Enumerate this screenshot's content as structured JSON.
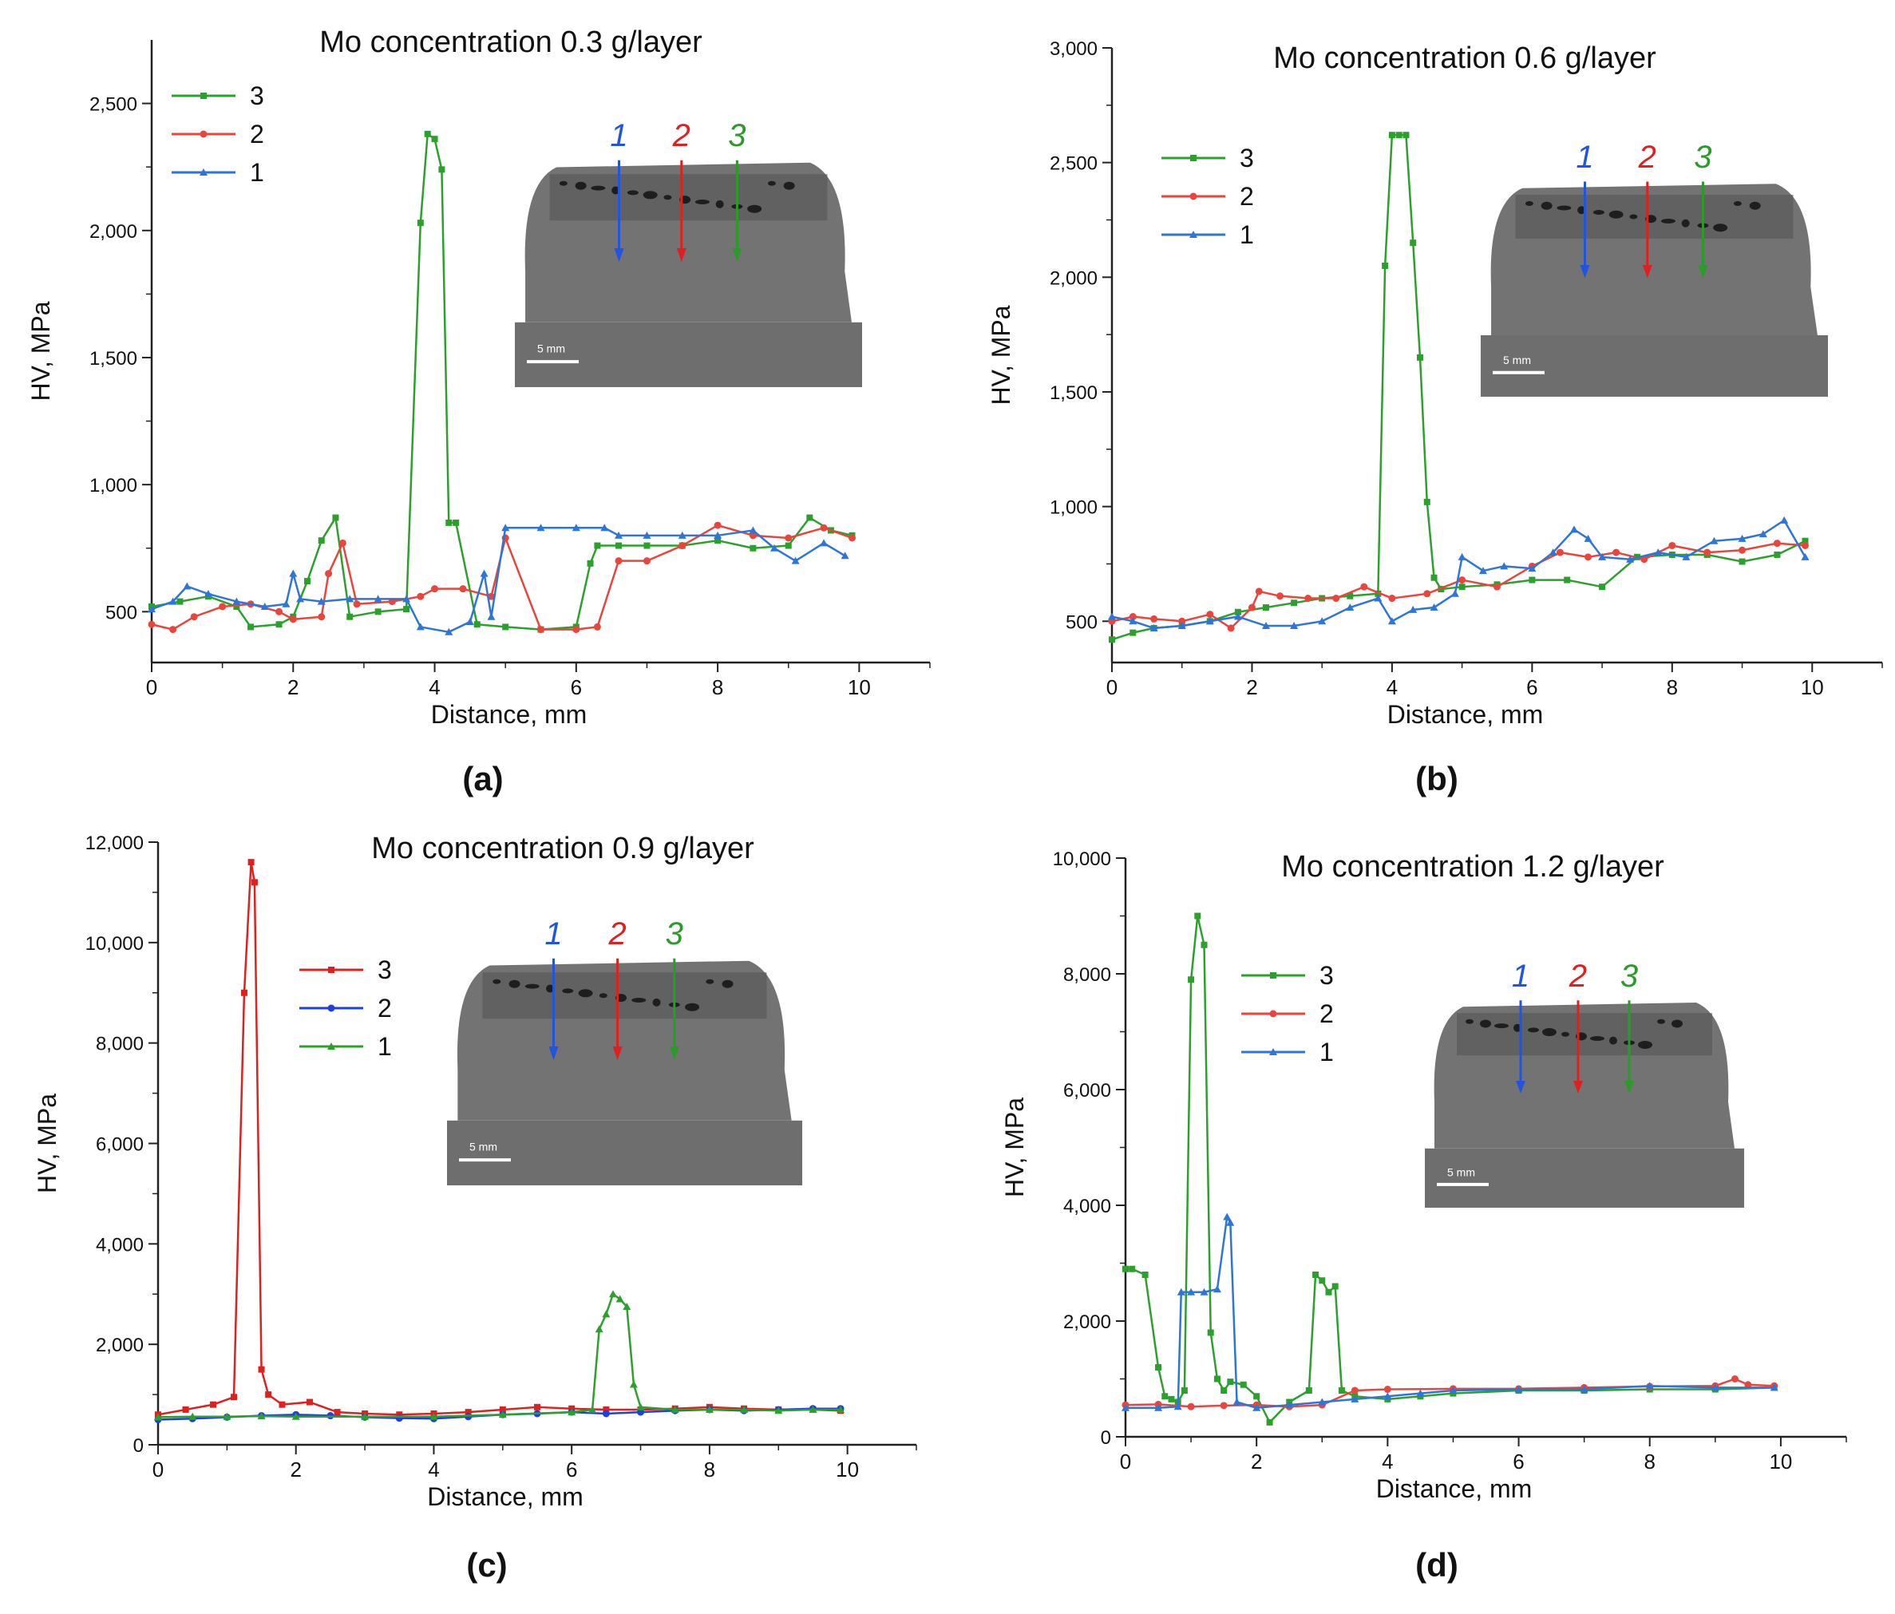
{
  "panels": [
    {
      "caption": "(a)",
      "chart_data": {
        "type": "line",
        "title": "Mo concentration 0.3 g/layer",
        "xlabel": "Distance, mm",
        "ylabel": "HV, MPa",
        "xlim": [
          0,
          11
        ],
        "ylim": [
          300,
          2750
        ],
        "xticks": [
          0,
          2,
          4,
          6,
          8,
          10
        ],
        "xtick_labels": [
          "0",
          "2",
          "4",
          "6",
          "8",
          "10"
        ],
        "yticks": [
          500,
          1000,
          1500,
          2000,
          2500
        ],
        "ytick_labels": [
          "500",
          "1,000",
          "1,500",
          "2,000",
          "2,500"
        ],
        "legend": "top-left",
        "inset": {
          "labels": [
            "1",
            "2",
            "3"
          ],
          "colors": [
            "#2255dd",
            "#e02020",
            "#2a9a2a"
          ],
          "scale_label": "5 mm"
        },
        "series": [
          {
            "name": "3",
            "color": "#2ca02c",
            "marker": "square",
            "x": [
              0,
              0.4,
              0.8,
              1.2,
              1.4,
              1.8,
              2.0,
              2.2,
              2.4,
              2.6,
              2.8,
              3.2,
              3.6,
              3.8,
              3.9,
              4.0,
              4.1,
              4.2,
              4.3,
              4.6,
              5.0,
              5.5,
              6.0,
              6.2,
              6.3,
              6.6,
              7.0,
              7.5,
              8.0,
              8.5,
              9.0,
              9.3,
              9.6,
              9.9
            ],
            "y": [
              520,
              540,
              560,
              520,
              440,
              450,
              480,
              620,
              780,
              870,
              480,
              500,
              510,
              2030,
              2380,
              2360,
              2240,
              850,
              850,
              450,
              440,
              430,
              440,
              690,
              760,
              760,
              760,
              760,
              780,
              750,
              760,
              870,
              820,
              800
            ]
          },
          {
            "name": "2",
            "color": "#e8453c",
            "marker": "circle",
            "x": [
              0,
              0.3,
              0.6,
              1.0,
              1.4,
              1.8,
              2.0,
              2.4,
              2.5,
              2.7,
              2.9,
              3.4,
              3.8,
              4.0,
              4.4,
              4.8,
              5.0,
              5.5,
              6.0,
              6.3,
              6.6,
              7.0,
              7.5,
              8.0,
              8.5,
              9.0,
              9.5,
              9.9
            ],
            "y": [
              450,
              430,
              480,
              520,
              530,
              500,
              470,
              480,
              650,
              770,
              530,
              540,
              560,
              590,
              590,
              560,
              790,
              430,
              430,
              440,
              700,
              700,
              760,
              840,
              800,
              790,
              830,
              790
            ]
          },
          {
            "name": "1",
            "color": "#2e75d9",
            "marker": "triangle",
            "x": [
              0,
              0.3,
              0.5,
              0.8,
              1.2,
              1.6,
              1.9,
              2.0,
              2.1,
              2.4,
              2.8,
              3.2,
              3.6,
              3.8,
              4.2,
              4.5,
              4.7,
              4.8,
              5.0,
              5.5,
              6.0,
              6.4,
              6.6,
              7.0,
              7.5,
              8.0,
              8.5,
              8.8,
              9.1,
              9.5,
              9.8
            ],
            "y": [
              510,
              540,
              600,
              570,
              540,
              520,
              530,
              650,
              550,
              540,
              550,
              550,
              550,
              440,
              420,
              460,
              650,
              480,
              830,
              830,
              830,
              830,
              800,
              800,
              800,
              800,
              820,
              750,
              700,
              770,
              720
            ]
          }
        ]
      }
    },
    {
      "caption": "(b)",
      "chart_data": {
        "type": "line",
        "title": "Mo concentration 0.6 g/layer",
        "xlabel": "Distance, mm",
        "ylabel": "HV, MPa",
        "xlim": [
          0,
          11
        ],
        "ylim": [
          320,
          3000
        ],
        "xticks": [
          0,
          2,
          4,
          6,
          8,
          10
        ],
        "xtick_labels": [
          "0",
          "2",
          "4",
          "6",
          "8",
          "10"
        ],
        "yticks": [
          500,
          1000,
          1500,
          2000,
          2500,
          3000
        ],
        "ytick_labels": [
          "500",
          "1,000",
          "1,500",
          "2,000",
          "2,500",
          "3,000"
        ],
        "legend": "top-left",
        "inset": {
          "labels": [
            "1",
            "2",
            "3"
          ],
          "colors": [
            "#2255dd",
            "#e02020",
            "#2a9a2a"
          ],
          "scale_label": "5 mm"
        },
        "series": [
          {
            "name": "3",
            "color": "#2ca02c",
            "marker": "square",
            "x": [
              0,
              0.3,
              0.6,
              1.0,
              1.4,
              1.8,
              2.2,
              2.6,
              3.0,
              3.4,
              3.8,
              3.9,
              4.0,
              4.1,
              4.2,
              4.3,
              4.4,
              4.5,
              4.6,
              4.7,
              5.0,
              5.5,
              6.0,
              6.5,
              7.0,
              7.5,
              8.0,
              8.5,
              9.0,
              9.5,
              9.9
            ],
            "y": [
              420,
              450,
              470,
              480,
              500,
              540,
              560,
              580,
              600,
              610,
              620,
              2050,
              2620,
              2620,
              2620,
              2150,
              1650,
              1020,
              690,
              640,
              650,
              660,
              680,
              680,
              650,
              780,
              790,
              790,
              760,
              790,
              850
            ]
          },
          {
            "name": "2",
            "color": "#e8453c",
            "marker": "circle",
            "x": [
              0,
              0.3,
              0.6,
              1.0,
              1.4,
              1.7,
              2.0,
              2.1,
              2.4,
              2.8,
              3.2,
              3.6,
              4.0,
              4.5,
              5.0,
              5.5,
              6.0,
              6.4,
              6.8,
              7.2,
              7.6,
              8.0,
              8.5,
              9.0,
              9.5,
              9.9
            ],
            "y": [
              500,
              520,
              510,
              500,
              530,
              470,
              560,
              630,
              610,
              600,
              600,
              650,
              600,
              620,
              680,
              650,
              740,
              800,
              780,
              800,
              770,
              830,
              800,
              810,
              840,
              830
            ]
          },
          {
            "name": "1",
            "color": "#2e75d9",
            "marker": "triangle",
            "x": [
              0,
              0.3,
              0.6,
              1.0,
              1.4,
              1.8,
              2.2,
              2.6,
              3.0,
              3.4,
              3.8,
              4.0,
              4.3,
              4.6,
              4.9,
              5.0,
              5.3,
              5.6,
              6.0,
              6.3,
              6.6,
              6.8,
              7.0,
              7.4,
              7.8,
              8.2,
              8.6,
              9.0,
              9.3,
              9.6,
              9.9
            ],
            "y": [
              520,
              500,
              470,
              480,
              500,
              520,
              480,
              480,
              500,
              560,
              600,
              500,
              550,
              560,
              620,
              780,
              720,
              740,
              730,
              800,
              900,
              860,
              780,
              770,
              800,
              780,
              850,
              860,
              880,
              940,
              780
            ]
          }
        ]
      }
    },
    {
      "caption": "(c)",
      "chart_data": {
        "type": "line",
        "title": "Mo concentration 0.9 g/layer",
        "xlabel": "Distance, mm",
        "ylabel": "HV, MPa",
        "xlim": [
          0,
          11
        ],
        "ylim": [
          0,
          12000
        ],
        "xticks": [
          0,
          2,
          4,
          6,
          8,
          10
        ],
        "xtick_labels": [
          "0",
          "2",
          "4",
          "6",
          "8",
          "10"
        ],
        "yticks": [
          0,
          2000,
          4000,
          6000,
          8000,
          10000,
          12000
        ],
        "ytick_labels": [
          "0",
          "2,000",
          "4,000",
          "6,000",
          "8,000",
          "10,000",
          "12,000"
        ],
        "legend": "top-center",
        "inset": {
          "labels": [
            "1",
            "2",
            "3"
          ],
          "colors": [
            "#2255dd",
            "#e02020",
            "#2a9a2a"
          ],
          "scale_label": "5 mm"
        },
        "series": [
          {
            "name": "3",
            "color": "#e01f1f",
            "marker": "square",
            "x": [
              0,
              0.4,
              0.8,
              1.1,
              1.25,
              1.35,
              1.4,
              1.5,
              1.6,
              1.8,
              2.2,
              2.6,
              3.0,
              3.5,
              4.0,
              4.5,
              5.0,
              5.5,
              6.0,
              6.5,
              7.0,
              7.5,
              8.0,
              8.5,
              9.0,
              9.5,
              9.9
            ],
            "y": [
              600,
              700,
              800,
              950,
              9000,
              11600,
              11200,
              1500,
              1000,
              800,
              850,
              650,
              620,
              600,
              620,
              650,
              700,
              750,
              720,
              700,
              700,
              720,
              750,
              720,
              700,
              700,
              680
            ]
          },
          {
            "name": "2",
            "color": "#1f3fe0",
            "marker": "circle",
            "x": [
              0,
              0.5,
              1.0,
              1.5,
              2.0,
              2.5,
              3.0,
              3.5,
              4.0,
              4.5,
              5.0,
              5.5,
              6.0,
              6.5,
              7.0,
              7.5,
              8.0,
              8.5,
              9.0,
              9.5,
              9.9
            ],
            "y": [
              500,
              520,
              550,
              580,
              600,
              580,
              550,
              530,
              520,
              560,
              600,
              620,
              650,
              620,
              650,
              680,
              700,
              680,
              700,
              720,
              720
            ]
          },
          {
            "name": "1",
            "color": "#2ca02c",
            "marker": "triangle",
            "x": [
              0,
              0.5,
              1.0,
              1.5,
              2.0,
              3.0,
              4.0,
              5.0,
              6.0,
              6.3,
              6.4,
              6.5,
              6.6,
              6.7,
              6.8,
              6.9,
              7.0,
              7.5,
              8.0,
              8.5,
              9.0,
              9.5,
              9.9
            ],
            "y": [
              550,
              560,
              560,
              570,
              560,
              560,
              560,
              600,
              650,
              700,
              2300,
              2600,
              3000,
              2900,
              2750,
              1200,
              750,
              700,
              700,
              700,
              680,
              700,
              700
            ]
          }
        ]
      }
    },
    {
      "caption": "(d)",
      "chart_data": {
        "type": "line",
        "title": "Mo concentration 1.2 g/layer",
        "xlabel": "Distance, mm",
        "ylabel": "HV, MPa",
        "xlim": [
          0,
          11
        ],
        "ylim": [
          0,
          10000
        ],
        "xticks": [
          0,
          2,
          4,
          6,
          8,
          10
        ],
        "xtick_labels": [
          "0",
          "2",
          "4",
          "6",
          "8",
          "10"
        ],
        "yticks": [
          0,
          2000,
          4000,
          6000,
          8000,
          10000
        ],
        "ytick_labels": [
          "0",
          "2,000",
          "4,000",
          "6,000",
          "8,000",
          "10,000"
        ],
        "legend": "top-left",
        "inset": {
          "labels": [
            "1",
            "2",
            "3"
          ],
          "colors": [
            "#2255dd",
            "#e02020",
            "#2a9a2a"
          ],
          "scale_label": "5 mm"
        },
        "series": [
          {
            "name": "3",
            "color": "#2ca02c",
            "marker": "square",
            "x": [
              0,
              0.1,
              0.3,
              0.5,
              0.6,
              0.7,
              0.8,
              0.9,
              1.0,
              1.1,
              1.2,
              1.3,
              1.4,
              1.5,
              1.6,
              1.8,
              2.0,
              2.2,
              2.5,
              2.8,
              2.9,
              3.0,
              3.1,
              3.2,
              3.3,
              3.5,
              4.0,
              4.5,
              5.0,
              6.0,
              7.0,
              8.0,
              9.0,
              9.9
            ],
            "y": [
              2900,
              2900,
              2800,
              1200,
              700,
              650,
              600,
              800,
              7900,
              9000,
              8500,
              1800,
              1000,
              800,
              950,
              900,
              700,
              250,
              600,
              800,
              2800,
              2700,
              2500,
              2600,
              800,
              700,
              650,
              700,
              750,
              800,
              800,
              820,
              820,
              850
            ]
          },
          {
            "name": "2",
            "color": "#e8453c",
            "marker": "circle",
            "x": [
              0,
              0.5,
              1.0,
              1.5,
              2.0,
              2.5,
              3.0,
              3.5,
              4.0,
              5.0,
              6.0,
              7.0,
              8.0,
              9.0,
              9.3,
              9.5,
              9.9
            ],
            "y": [
              550,
              560,
              520,
              540,
              550,
              520,
              550,
              800,
              820,
              830,
              830,
              850,
              870,
              880,
              1000,
              900,
              880
            ]
          },
          {
            "name": "1",
            "color": "#2e75d9",
            "marker": "triangle",
            "x": [
              0,
              0.5,
              0.8,
              0.85,
              1.0,
              1.2,
              1.4,
              1.55,
              1.6,
              1.7,
              2.0,
              2.5,
              3.0,
              3.5,
              4.0,
              4.5,
              5.0,
              6.0,
              7.0,
              8.0,
              9.0,
              9.9
            ],
            "y": [
              500,
              500,
              520,
              2500,
              2500,
              2500,
              2550,
              3800,
              3700,
              600,
              500,
              550,
              600,
              650,
              700,
              750,
              800,
              820,
              820,
              880,
              850,
              850
            ]
          }
        ]
      }
    }
  ]
}
